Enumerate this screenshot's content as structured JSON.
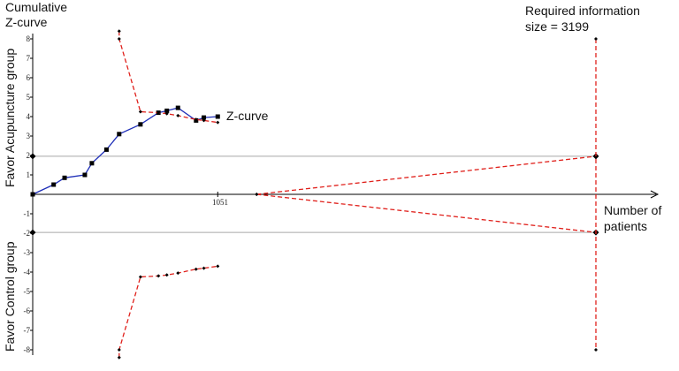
{
  "chart_data": {
    "type": "line",
    "title": "Cumulative Z-curve",
    "title_lines": [
      "Cumulative",
      "Z-curve"
    ],
    "xlabel": "Number of patients",
    "xlabel_lines": [
      "Number of",
      "patients"
    ],
    "ylabel_top": "Favor Acupuncture group",
    "ylabel_bottom": "Favor Control group",
    "ylim": [
      -8,
      8
    ],
    "yticks": [
      8,
      7,
      6,
      5,
      4,
      3,
      2,
      1,
      -1,
      -2,
      -3,
      -4,
      -5,
      -6,
      -7,
      -8
    ],
    "xlim": [
      0,
      3400
    ],
    "xtick_label": "1051",
    "ris_label_lines": [
      "Required information",
      "size = 3199"
    ],
    "zcurve_label": "Z-curve",
    "grid": false,
    "colors": {
      "zcurve": "#1f2fb8",
      "boundary": "#e0201b",
      "conventional": "#a9a9a9",
      "axis": "#000000",
      "marker": "#000000"
    },
    "conventional_boundaries": [
      1.96,
      -1.96
    ],
    "series": [
      {
        "name": "Z-curve",
        "kind": "cumulative-z",
        "x": [
          0,
          119,
          181,
          296,
          336,
          419,
          491,
          612,
          714,
          762,
          825,
          928,
          972,
          1051
        ],
        "y": [
          0,
          0.5,
          0.85,
          1.0,
          1.6,
          2.3,
          3.1,
          3.6,
          4.2,
          4.3,
          4.45,
          3.8,
          3.95,
          4.0
        ]
      },
      {
        "kind": "monitoring-boundary-upper",
        "x": [
          491,
          491,
          612,
          714,
          762,
          825,
          928,
          972,
          1051
        ],
        "y": [
          8.4,
          8.0,
          4.25,
          4.2,
          4.15,
          4.05,
          3.85,
          3.8,
          3.7
        ]
      },
      {
        "kind": "monitoring-boundary-lower",
        "x": [
          491,
          491,
          612,
          714,
          762,
          825,
          928,
          972,
          1051
        ],
        "y": [
          -8.4,
          -8.0,
          -4.25,
          -4.2,
          -4.15,
          -4.05,
          -3.85,
          -3.8,
          -3.7
        ]
      },
      {
        "kind": "futility-upper",
        "x": [
          1272,
          3199
        ],
        "y": [
          0,
          1.96
        ]
      },
      {
        "kind": "futility-lower",
        "x": [
          1272,
          3199
        ],
        "y": [
          0,
          -1.96
        ]
      }
    ],
    "required_information_size": 3199
  }
}
